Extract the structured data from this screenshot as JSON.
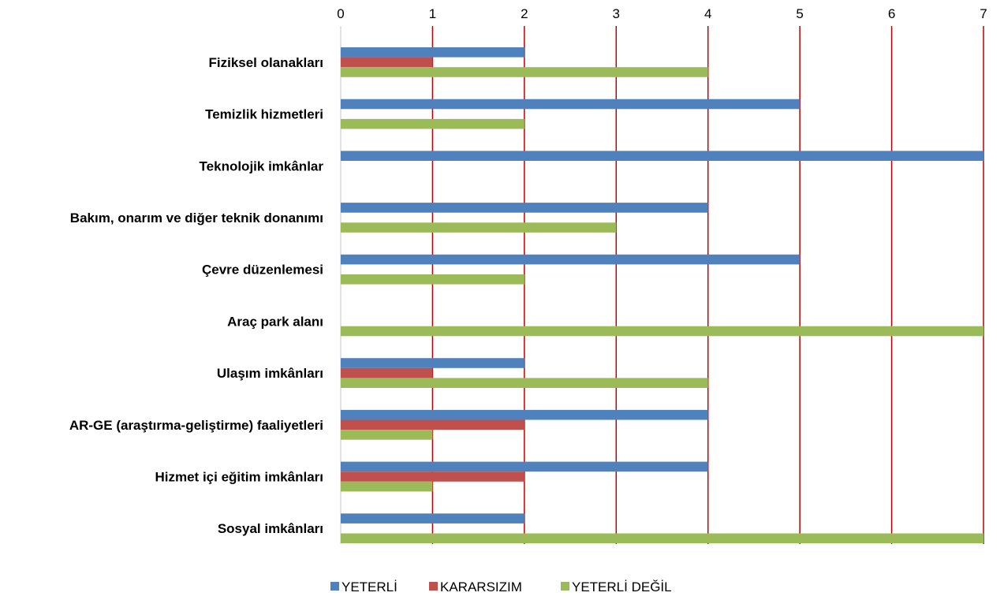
{
  "chart_data": {
    "type": "bar",
    "orientation": "horizontal",
    "categories": [
      "Fiziksel olanakları",
      "Temizlik hizmetleri",
      "Teknolojik imkânlar",
      "Bakım, onarım ve diğer teknik donanımı",
      "Çevre düzenlemesi",
      "Araç park alanı",
      "Ulaşım imkânları",
      "AR-GE (araştırma-geliştirme) faaliyetleri",
      "Hizmet içi eğitim imkânları",
      "Sosyal imkânları"
    ],
    "series": [
      {
        "name": "YETERLİ",
        "color": "#4F81BD",
        "values": [
          2,
          5,
          7,
          4,
          5,
          0,
          2,
          4,
          4,
          2
        ]
      },
      {
        "name": "KARARSIZIM",
        "color": "#C0504D",
        "values": [
          1,
          0,
          0,
          0,
          0,
          0,
          1,
          2,
          2,
          0
        ]
      },
      {
        "name": "YETERLİ DEĞİL",
        "color": "#9BBB59",
        "values": [
          4,
          2,
          0,
          3,
          2,
          7,
          4,
          1,
          1,
          7
        ]
      }
    ],
    "xlim": [
      0,
      7
    ],
    "x_ticks": [
      "0",
      "1",
      "2",
      "3",
      "4",
      "5",
      "6",
      "7"
    ],
    "x_axis_position": "top",
    "gridlines": {
      "show": true,
      "color": "#C00000"
    },
    "legend": {
      "position": "bottom"
    },
    "title": "",
    "xlabel": "",
    "ylabel": ""
  }
}
